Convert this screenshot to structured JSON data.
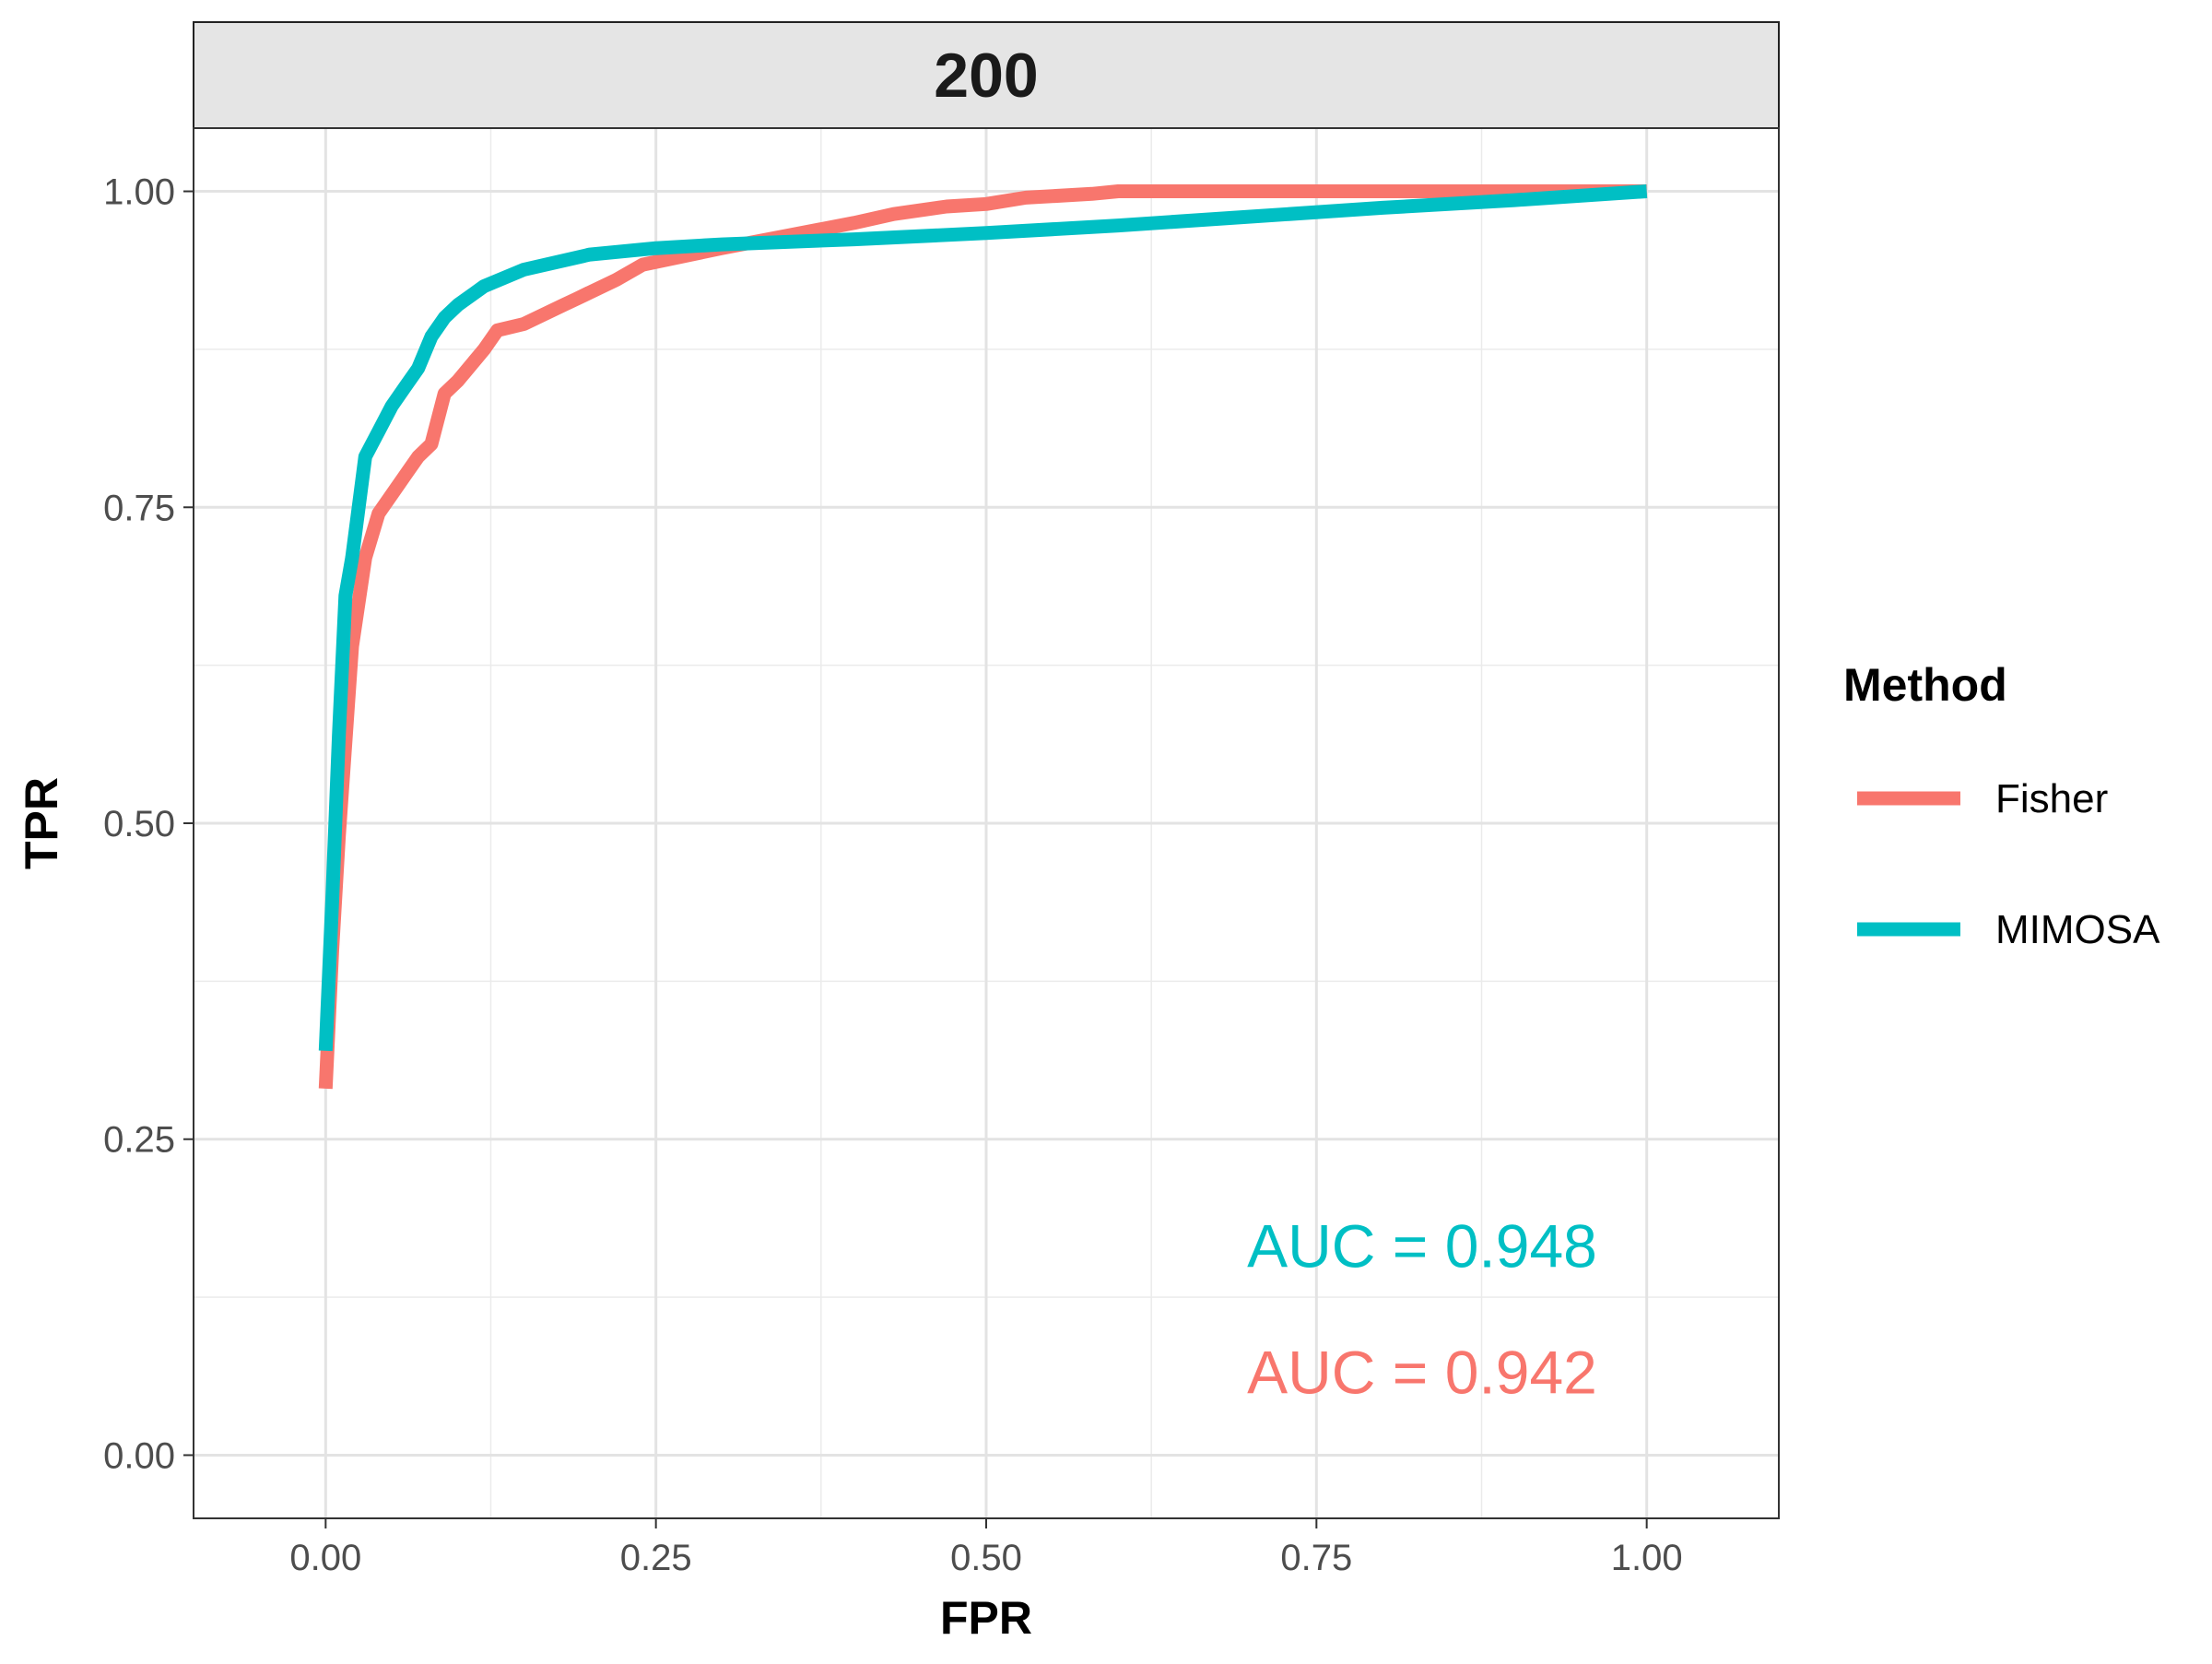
{
  "chart_data": {
    "type": "line",
    "panel_title": "200",
    "xlabel": "FPR",
    "ylabel": "TPR",
    "xlim": [
      -0.1,
      1.1
    ],
    "ylim": [
      -0.05,
      1.05
    ],
    "x_ticks": [
      0.0,
      0.25,
      0.5,
      0.75,
      1.0
    ],
    "x_tick_labels": [
      "0.00",
      "0.25",
      "0.50",
      "0.75",
      "1.00"
    ],
    "y_ticks": [
      0.0,
      0.25,
      0.5,
      0.75,
      1.0
    ],
    "y_tick_labels": [
      "0.00",
      "0.25",
      "0.50",
      "0.75",
      "1.00"
    ],
    "grid": true,
    "legend": {
      "title": "Method",
      "position": "right",
      "entries": [
        "Fisher",
        "MIMOSA"
      ]
    },
    "series": [
      {
        "name": "Fisher",
        "color": "#F8766D",
        "x": [
          0.0,
          0.005,
          0.01,
          0.02,
          0.03,
          0.04,
          0.05,
          0.06,
          0.07,
          0.08,
          0.09,
          0.1,
          0.12,
          0.13,
          0.15,
          0.18,
          0.19,
          0.2,
          0.22,
          0.24,
          0.3,
          0.35,
          0.4,
          0.43,
          0.47,
          0.5,
          0.53,
          0.58,
          0.6,
          0.7,
          0.8,
          0.9,
          1.0
        ],
        "y": [
          0.29,
          0.4,
          0.49,
          0.64,
          0.71,
          0.745,
          0.76,
          0.775,
          0.79,
          0.8,
          0.84,
          0.85,
          0.875,
          0.89,
          0.895,
          0.91,
          0.915,
          0.92,
          0.93,
          0.942,
          0.955,
          0.965,
          0.975,
          0.982,
          0.988,
          0.99,
          0.995,
          0.998,
          1.0,
          1.0,
          1.0,
          1.0,
          1.0
        ]
      },
      {
        "name": "MIMOSA",
        "color": "#00BFC4",
        "x": [
          0.0,
          0.005,
          0.01,
          0.015,
          0.02,
          0.03,
          0.04,
          0.05,
          0.06,
          0.07,
          0.08,
          0.09,
          0.1,
          0.12,
          0.15,
          0.2,
          0.25,
          0.3,
          0.4,
          0.5,
          0.6,
          0.7,
          0.8,
          0.9,
          1.0
        ],
        "y": [
          0.32,
          0.44,
          0.57,
          0.68,
          0.71,
          0.79,
          0.81,
          0.83,
          0.845,
          0.86,
          0.885,
          0.9,
          0.91,
          0.925,
          0.938,
          0.95,
          0.955,
          0.958,
          0.962,
          0.967,
          0.973,
          0.98,
          0.987,
          0.993,
          1.0
        ]
      }
    ],
    "annotations": [
      {
        "text": "AUC = 0.948",
        "color": "#00BFC4",
        "x": 0.83,
        "y": 0.165
      },
      {
        "text": "AUC = 0.942",
        "color": "#F8766D",
        "x": 0.83,
        "y": 0.065
      }
    ]
  }
}
